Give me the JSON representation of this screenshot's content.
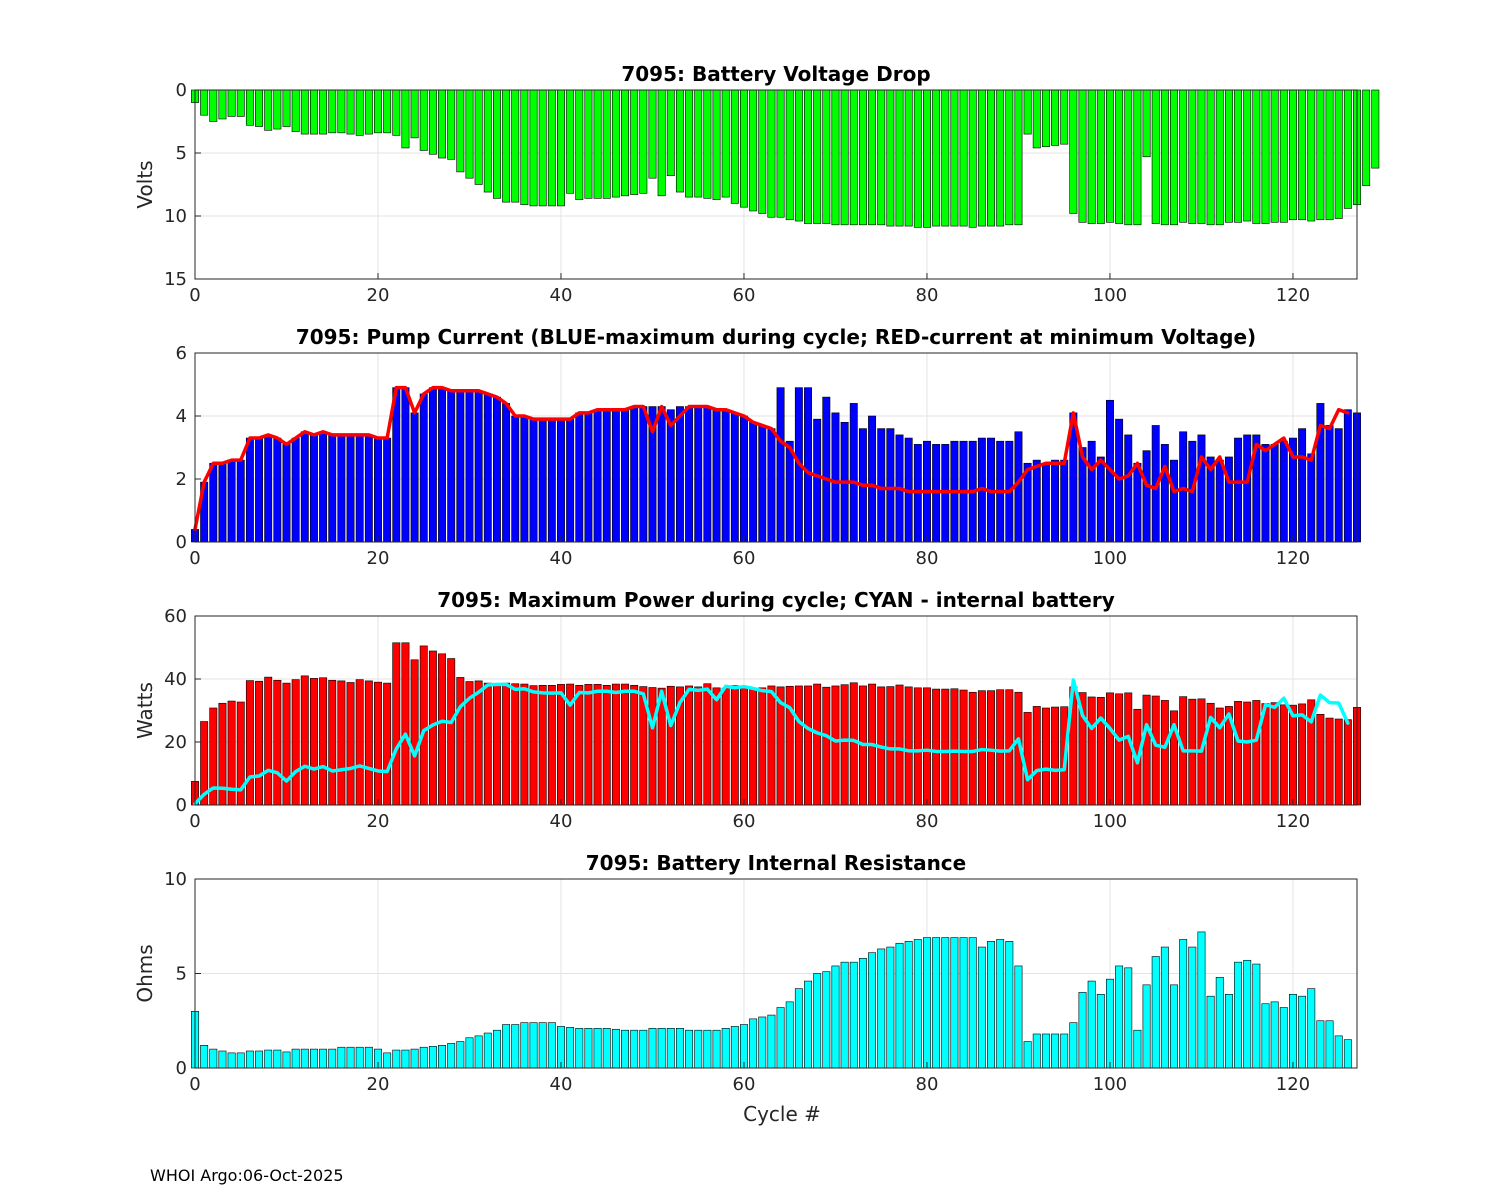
{
  "footer": "WHOI Argo:06-Oct-2025",
  "chart_data": [
    {
      "type": "bar",
      "title": "7095: Battery Voltage Drop",
      "xlabel": "",
      "ylabel": "Volts",
      "ylim": [
        0,
        15
      ],
      "y_reversed": true,
      "xlim": [
        0,
        127
      ],
      "xticks": [
        0,
        20,
        40,
        60,
        80,
        100,
        120
      ],
      "yticks": [
        0,
        5,
        10,
        15
      ],
      "grid": true,
      "bar_color": "#00ff00",
      "series": [
        {
          "values": [
            1,
            2,
            2.5,
            2.3,
            2.1,
            2.1,
            2.8,
            2.9,
            3.2,
            3.1,
            2.9,
            3.3,
            3.5,
            3.5,
            3.5,
            3.4,
            3.4,
            3.5,
            3.6,
            3.5,
            3.4,
            3.4,
            3.6,
            4.6,
            3.8,
            4.8,
            5.1,
            5.4,
            5.5,
            6.5,
            7,
            7.5,
            8.1,
            8.6,
            8.9,
            8.9,
            9.1,
            9.2,
            9.2,
            9.2,
            9.2,
            8.2,
            8.7,
            8.6,
            8.6,
            8.6,
            8.5,
            8.4,
            8.3,
            8.2,
            7,
            8.4,
            6.8,
            8.1,
            8.5,
            8.5,
            8.6,
            8.7,
            8.5,
            9,
            9.3,
            9.6,
            9.8,
            10.1,
            10.1,
            10.3,
            10.4,
            10.6,
            10.6,
            10.6,
            10.7,
            10.7,
            10.7,
            10.7,
            10.7,
            10.7,
            10.8,
            10.8,
            10.8,
            10.9,
            10.9,
            10.8,
            10.8,
            10.8,
            10.8,
            10.9,
            10.8,
            10.8,
            10.8,
            10.7,
            10.7,
            3.5,
            4.6,
            4.5,
            4.4,
            4.3,
            9.8,
            10.5,
            10.6,
            10.6,
            10.5,
            10.6,
            10.7,
            10.7,
            5.3,
            10.6,
            10.7,
            10.7,
            10.5,
            10.6,
            10.6,
            10.7,
            10.7,
            10.5,
            10.5,
            10.4,
            10.6,
            10.6,
            10.5,
            10.5,
            10.3,
            10.3,
            10.4,
            10.3,
            10.3,
            10.2,
            9.4,
            9.1,
            7.6,
            6.2
          ]
        }
      ]
    },
    {
      "type": "bar",
      "title": "7095: Pump Current (BLUE-maximum during cycle; RED-current at minimum Voltage)",
      "xlabel": "",
      "ylabel": "",
      "ylim": [
        0,
        6
      ],
      "xlim": [
        0,
        127
      ],
      "xticks": [
        0,
        20,
        40,
        60,
        80,
        100,
        120
      ],
      "yticks": [
        0,
        2,
        4,
        6
      ],
      "grid": true,
      "series": [
        {
          "style": "bar",
          "color": "#0000ff",
          "values": [
            0.4,
            1.9,
            2.5,
            2.5,
            2.6,
            2.6,
            3.3,
            3.3,
            3.4,
            3.3,
            3.1,
            3.3,
            3.5,
            3.4,
            3.5,
            3.4,
            3.4,
            3.4,
            3.4,
            3.4,
            3.3,
            3.3,
            4.9,
            4.9,
            4.1,
            4.7,
            4.9,
            4.9,
            4.8,
            4.8,
            4.8,
            4.8,
            4.7,
            4.6,
            4.4,
            4.0,
            4.0,
            3.9,
            3.9,
            3.9,
            3.9,
            3.9,
            4.1,
            4.1,
            4.2,
            4.2,
            4.2,
            4.2,
            4.3,
            4.3,
            4.3,
            4.3,
            4.2,
            4.3,
            4.3,
            4.3,
            4.3,
            4.2,
            4.2,
            4.1,
            4.0,
            3.8,
            3.7,
            3.6,
            4.9,
            3.2,
            4.9,
            4.9,
            3.9,
            4.6,
            4.1,
            3.8,
            4.4,
            3.6,
            4.0,
            3.6,
            3.6,
            3.4,
            3.3,
            3.1,
            3.2,
            3.1,
            3.1,
            3.2,
            3.2,
            3.2,
            3.3,
            3.3,
            3.2,
            3.2,
            3.5,
            2.5,
            2.6,
            2.5,
            2.6,
            2.6,
            4.1,
            3.0,
            3.2,
            2.7,
            4.5,
            3.9,
            3.4,
            2.5,
            2.9,
            3.7,
            3.1,
            2.6,
            3.5,
            3.2,
            3.4,
            2.7,
            2.6,
            2.7,
            3.3,
            3.4,
            3.4,
            3.1,
            3.1,
            3.2,
            3.3,
            3.6,
            2.8,
            4.4,
            3.7,
            3.6,
            4.2,
            4.1
          ]
        },
        {
          "style": "line",
          "color": "#ff0000",
          "values": [
            0.4,
            1.9,
            2.5,
            2.5,
            2.6,
            2.6,
            3.3,
            3.3,
            3.4,
            3.3,
            3.1,
            3.3,
            3.5,
            3.4,
            3.5,
            3.4,
            3.4,
            3.4,
            3.4,
            3.4,
            3.3,
            3.3,
            4.9,
            4.9,
            4.1,
            4.7,
            4.9,
            4.9,
            4.8,
            4.8,
            4.8,
            4.8,
            4.7,
            4.6,
            4.4,
            4.0,
            4.0,
            3.9,
            3.9,
            3.9,
            3.9,
            3.9,
            4.1,
            4.1,
            4.2,
            4.2,
            4.2,
            4.2,
            4.3,
            4.3,
            3.5,
            4.3,
            3.7,
            4.0,
            4.3,
            4.3,
            4.3,
            4.2,
            4.2,
            4.1,
            4.0,
            3.8,
            3.7,
            3.6,
            3.2,
            3.0,
            2.5,
            2.2,
            2.1,
            2.0,
            1.9,
            1.9,
            1.9,
            1.8,
            1.8,
            1.7,
            1.7,
            1.7,
            1.6,
            1.6,
            1.6,
            1.6,
            1.6,
            1.6,
            1.6,
            1.6,
            1.7,
            1.6,
            1.6,
            1.6,
            1.9,
            2.3,
            2.4,
            2.5,
            2.5,
            2.5,
            4.1,
            2.7,
            2.3,
            2.6,
            2.3,
            2.0,
            2.1,
            2.5,
            1.8,
            1.7,
            2.4,
            1.6,
            1.7,
            1.6,
            2.7,
            2.3,
            2.7,
            1.9,
            1.9,
            1.9,
            3.1,
            2.9,
            3.1,
            3.3,
            2.7,
            2.7,
            2.6,
            3.7,
            3.6,
            4.2,
            4.1
          ]
        }
      ]
    },
    {
      "type": "bar",
      "title": "7095: Maximum Power during cycle; CYAN - internal battery",
      "xlabel": "",
      "ylabel": "Watts",
      "ylim": [
        0,
        60
      ],
      "xlim": [
        0,
        127
      ],
      "xticks": [
        0,
        20,
        40,
        60,
        80,
        100,
        120
      ],
      "yticks": [
        0,
        20,
        40,
        60
      ],
      "grid": true,
      "series": [
        {
          "style": "bar",
          "color": "#ff0000",
          "values": [
            7.5,
            26.5,
            30.8,
            32.3,
            33,
            32.7,
            39.5,
            39.3,
            40.6,
            39.6,
            38.7,
            39.8,
            41,
            40.2,
            40.4,
            39.6,
            39.4,
            38.9,
            39.8,
            39.4,
            39,
            38.7,
            51.5,
            51.5,
            46.1,
            50.5,
            48.9,
            48,
            46.5,
            40.5,
            39.2,
            39.4,
            38.7,
            38.3,
            38.7,
            38.5,
            38.4,
            37.9,
            38,
            38,
            38.3,
            38.4,
            38,
            38.3,
            38.3,
            38,
            38.4,
            38.4,
            38,
            37.6,
            37.3,
            37.1,
            37.7,
            37.5,
            37.8,
            37.5,
            38.5,
            37.2,
            37.1,
            37.9,
            37.5,
            37.2,
            37.2,
            37.8,
            37.5,
            37.7,
            37.8,
            37.8,
            38.4,
            37.4,
            37.8,
            38.2,
            38.8,
            37.8,
            38.4,
            37.5,
            37.6,
            38.1,
            37.5,
            37.2,
            37.2,
            36.8,
            36.8,
            36.9,
            36.5,
            35.8,
            36.3,
            36.3,
            36.6,
            36.6,
            35.8,
            29.4,
            31.3,
            30.8,
            31.1,
            31.2,
            37.5,
            35.7,
            34.3,
            34.2,
            35.6,
            35.3,
            35.6,
            30.4,
            34.9,
            34.6,
            33.2,
            29.9,
            34.4,
            33.6,
            33.7,
            32.3,
            30.8,
            31.3,
            32.9,
            32.7,
            33.2,
            32.2,
            32.5,
            31.8,
            31.7,
            32.1,
            33.4,
            28.8,
            27.6,
            27.3,
            27.1,
            31
          ]
        },
        {
          "style": "line",
          "color": "#00ffff",
          "values": [
            0.4,
            3.4,
            5.4,
            5.3,
            5,
            4.8,
            8.9,
            9.2,
            11,
            10.2,
            7.6,
            10.6,
            12.3,
            11.4,
            12.2,
            10.8,
            11.2,
            11.6,
            12.4,
            11.6,
            10.8,
            10.6,
            17.8,
            22.5,
            15.6,
            23.6,
            25.4,
            26.6,
            26.2,
            31.2,
            33.9,
            35.8,
            38.1,
            38.3,
            38.3,
            36.7,
            36.9,
            35.9,
            35.6,
            35.5,
            35.6,
            31.7,
            35.7,
            35.6,
            36.1,
            36.1,
            35.7,
            36.1,
            36.1,
            35.3,
            24.5,
            36.1,
            25.2,
            32.5,
            36.7,
            36.4,
            36.8,
            33.4,
            37.7,
            37.2,
            37.6,
            37,
            36.3,
            36,
            32.5,
            30.9,
            26.5,
            24.3,
            22.9,
            22,
            20.3,
            20.6,
            20.5,
            19.2,
            19.2,
            18.4,
            17.8,
            17.8,
            17.2,
            17.2,
            17.4,
            17,
            17,
            17.1,
            17,
            17,
            17.6,
            17.4,
            17.1,
            17.2,
            21,
            8,
            10.9,
            11.4,
            11,
            11.2,
            39.7,
            28.4,
            24.3,
            27.6,
            24.3,
            20.6,
            21.8,
            13.4,
            25.5,
            19,
            18.3,
            25.5,
            17.2,
            17.2,
            17.1,
            27.8,
            24.5,
            28.9,
            20.3,
            20,
            20.6,
            31.8,
            31,
            33.9,
            28.3,
            28.6,
            26.4,
            34.9,
            32.5,
            32.4,
            26
          ]
        }
      ]
    },
    {
      "type": "bar",
      "title": "7095: Battery Internal Resistance",
      "xlabel": "Cycle #",
      "ylabel": "Ohms",
      "ylim": [
        0,
        10
      ],
      "xlim": [
        0,
        127
      ],
      "xticks": [
        0,
        20,
        40,
        60,
        80,
        100,
        120
      ],
      "yticks": [
        0,
        5,
        10
      ],
      "grid": true,
      "bar_color": "#00ffff",
      "series": [
        {
          "values": [
            3,
            1.2,
            1,
            0.9,
            0.8,
            0.8,
            0.9,
            0.9,
            0.95,
            0.95,
            0.85,
            1,
            1,
            1,
            1,
            1,
            1.1,
            1.1,
            1.1,
            1.1,
            1,
            0.8,
            0.95,
            0.95,
            1,
            1.1,
            1.15,
            1.2,
            1.3,
            1.4,
            1.6,
            1.7,
            1.85,
            2,
            2.3,
            2.3,
            2.4,
            2.4,
            2.4,
            2.4,
            2.2,
            2.15,
            2.1,
            2.1,
            2.1,
            2.1,
            2.05,
            2,
            2,
            2,
            2.1,
            2.1,
            2.1,
            2.1,
            2,
            2,
            2,
            2,
            2.1,
            2.2,
            2.3,
            2.6,
            2.7,
            2.8,
            3.2,
            3.5,
            4.2,
            4.6,
            5,
            5.1,
            5.4,
            5.6,
            5.6,
            5.8,
            6.1,
            6.3,
            6.4,
            6.6,
            6.7,
            6.8,
            6.9,
            6.9,
            6.9,
            6.9,
            6.9,
            6.9,
            6.4,
            6.7,
            6.8,
            6.7,
            5.4,
            1.4,
            1.8,
            1.8,
            1.8,
            1.8,
            2.4,
            4,
            4.6,
            3.9,
            4.7,
            5.4,
            5.3,
            2,
            4.4,
            5.9,
            6.4,
            4.4,
            6.8,
            6.4,
            7.2,
            3.8,
            4.8,
            3.9,
            5.6,
            5.7,
            5.5,
            3.4,
            3.5,
            3.2,
            3.9,
            3.8,
            4.2,
            2.5,
            2.5,
            1.7,
            1.5
          ]
        }
      ]
    }
  ]
}
